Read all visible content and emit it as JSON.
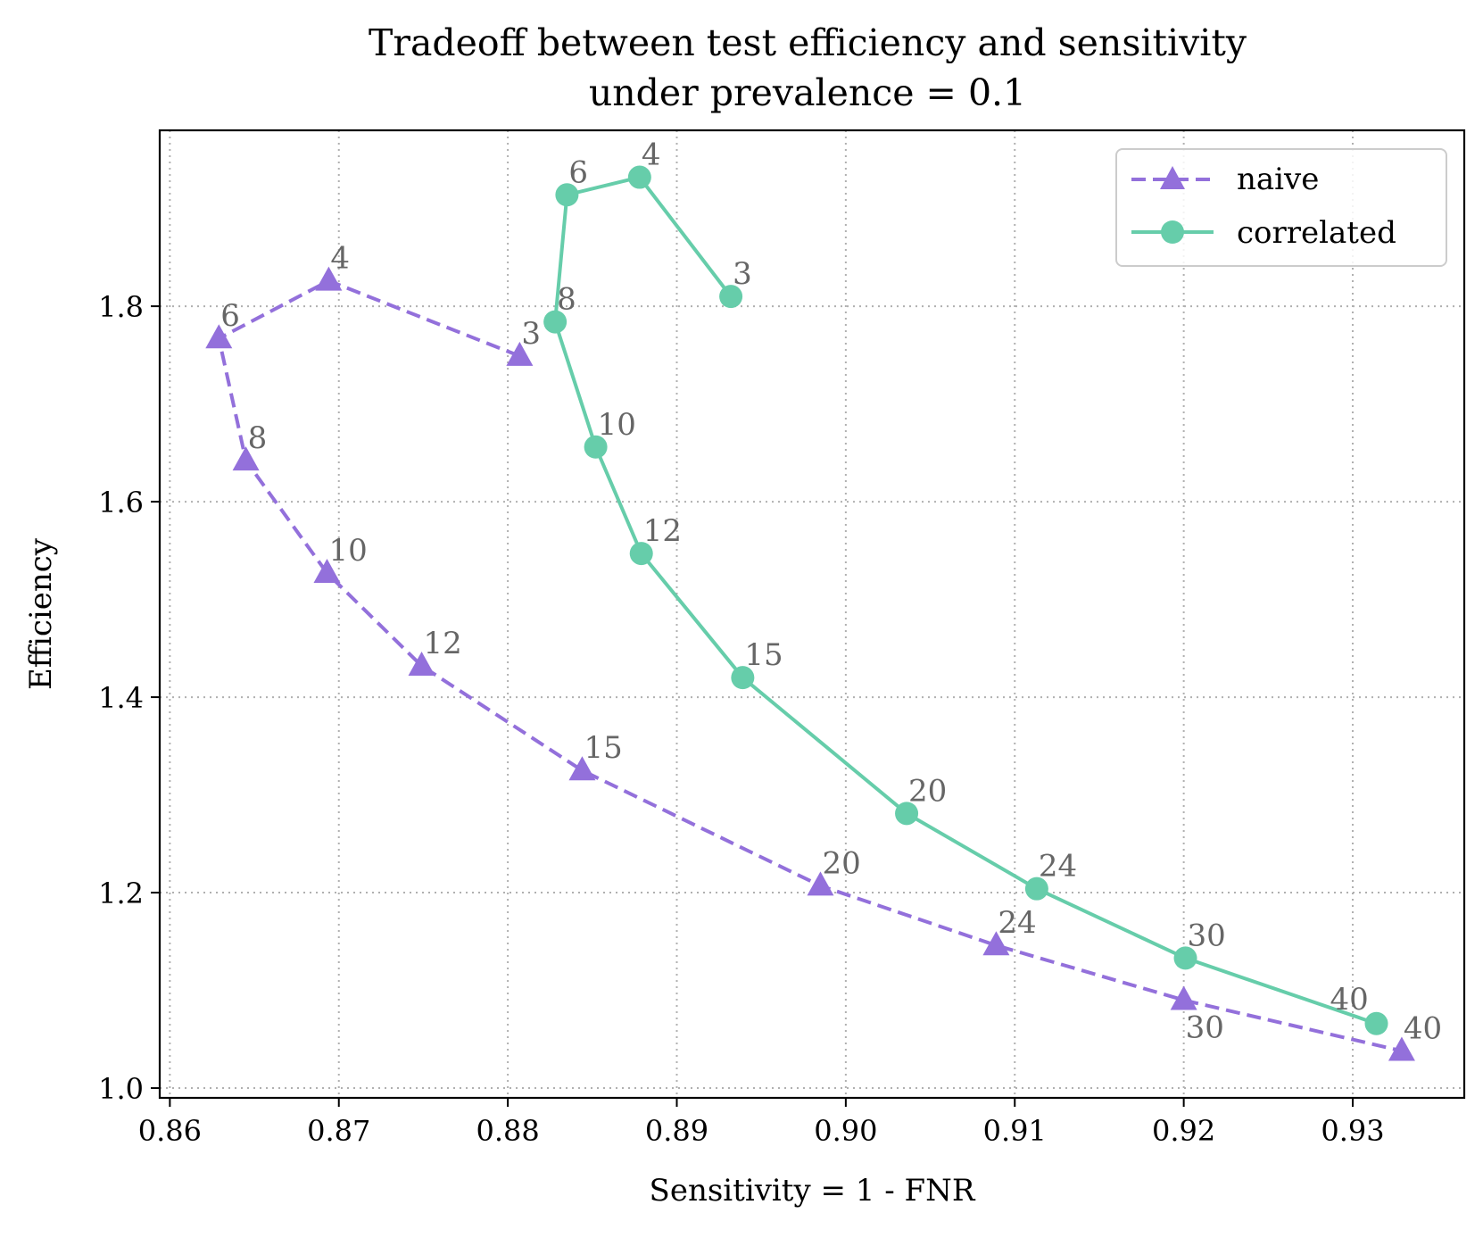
{
  "chart_data": {
    "type": "line",
    "title_lines": [
      "Tradeoff between test efficiency and sensitivity",
      "under prevalence = 0.1"
    ],
    "xlabel": "Sensitivity = 1 - FNR",
    "ylabel": "Efficiency",
    "xlim": [
      0.8594,
      0.9366
    ],
    "ylim": [
      0.99,
      1.98
    ],
    "xticks": [
      0.86,
      0.87,
      0.88,
      0.89,
      0.9,
      0.91,
      0.92,
      0.93
    ],
    "xtick_labels": [
      "0.86",
      "0.87",
      "0.88",
      "0.89",
      "0.90",
      "0.91",
      "0.92",
      "0.93"
    ],
    "yticks": [
      1.0,
      1.2,
      1.4,
      1.6,
      1.8
    ],
    "ytick_labels": [
      "1.0",
      "1.2",
      "1.4",
      "1.6",
      "1.8"
    ],
    "grid": true,
    "legend_position": "top-right",
    "series": [
      {
        "name": "naive",
        "color": "#9370db",
        "linestyle": "dashed",
        "marker": "triangle",
        "points": [
          {
            "label": "3",
            "x": 0.8807,
            "y": 1.749
          },
          {
            "label": "4",
            "x": 0.8694,
            "y": 1.826
          },
          {
            "label": "6",
            "x": 0.8629,
            "y": 1.767
          },
          {
            "label": "8",
            "x": 0.8645,
            "y": 1.642
          },
          {
            "label": "10",
            "x": 0.8693,
            "y": 1.527
          },
          {
            "label": "12",
            "x": 0.8749,
            "y": 1.432
          },
          {
            "label": "15",
            "x": 0.8844,
            "y": 1.325
          },
          {
            "label": "20",
            "x": 0.8985,
            "y": 1.207
          },
          {
            "label": "24",
            "x": 0.9089,
            "y": 1.146
          },
          {
            "label": "30",
            "x": 0.92,
            "y": 1.09
          },
          {
            "label": "40",
            "x": 0.9329,
            "y": 1.038
          }
        ]
      },
      {
        "name": "correlated",
        "color": "#66cdaa",
        "linestyle": "solid",
        "marker": "circle",
        "points": [
          {
            "label": "3",
            "x": 0.8932,
            "y": 1.81
          },
          {
            "label": "4",
            "x": 0.8878,
            "y": 1.932
          },
          {
            "label": "6",
            "x": 0.8835,
            "y": 1.914
          },
          {
            "label": "8",
            "x": 0.8828,
            "y": 1.784
          },
          {
            "label": "10",
            "x": 0.8852,
            "y": 1.656
          },
          {
            "label": "12",
            "x": 0.8879,
            "y": 1.547
          },
          {
            "label": "15",
            "x": 0.8939,
            "y": 1.42
          },
          {
            "label": "20",
            "x": 0.9036,
            "y": 1.281
          },
          {
            "label": "24",
            "x": 0.9113,
            "y": 1.204
          },
          {
            "label": "30",
            "x": 0.9201,
            "y": 1.133
          },
          {
            "label": "40",
            "x": 0.9314,
            "y": 1.066
          }
        ]
      }
    ]
  }
}
